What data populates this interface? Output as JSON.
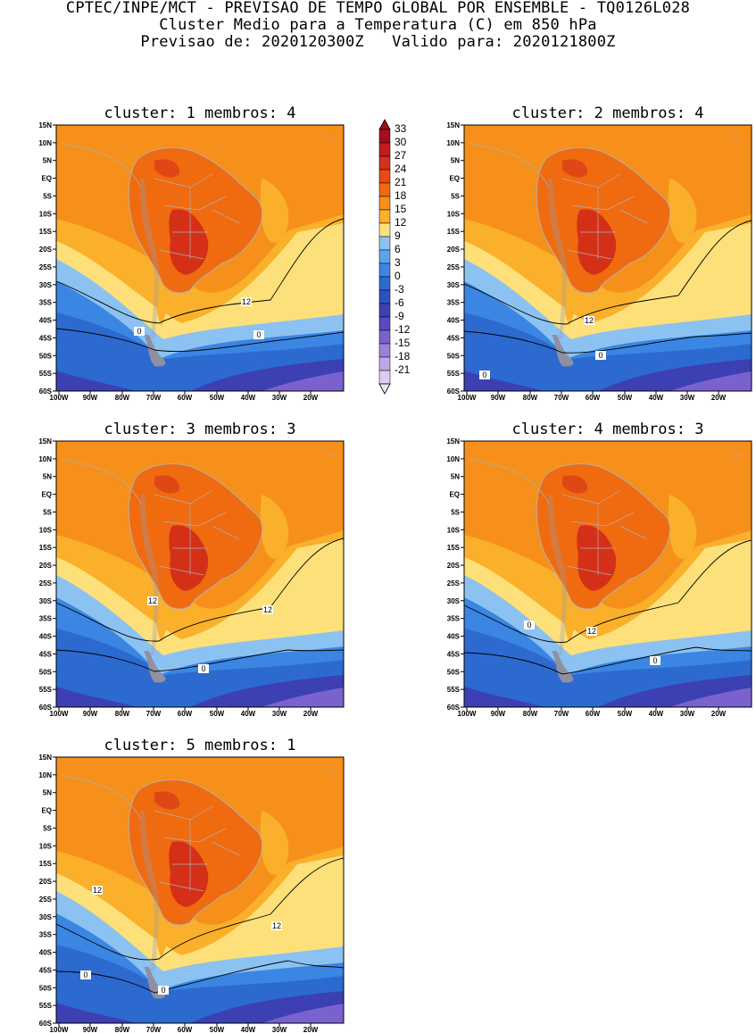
{
  "header": {
    "line1": "CPTEC/INPE/MCT - PREVISAO DE TEMPO GLOBAL POR ENSEMBLE - TQ0126L028",
    "line2": "Cluster Medio para a Temperatura (C) em 850 hPa",
    "line3": "Previsao de: 2020120300Z   Valido para: 2020121800Z"
  },
  "axes": {
    "lat_ticks": [
      "15N",
      "10N",
      "5N",
      "EQ",
      "5S",
      "10S",
      "15S",
      "20S",
      "25S",
      "30S",
      "35S",
      "40S",
      "45S",
      "50S",
      "55S",
      "60S"
    ],
    "lon_ticks": [
      "100W",
      "90W",
      "80W",
      "70W",
      "60W",
      "50W",
      "40W",
      "30W",
      "20W"
    ]
  },
  "panels": [
    {
      "title": "cluster: 1   membros: 4",
      "contour_labels": [
        "12",
        "0",
        "0"
      ]
    },
    {
      "title": "cluster: 2   membros: 4",
      "contour_labels": [
        "12",
        "0",
        "0"
      ]
    },
    {
      "title": "cluster: 3   membros: 3",
      "contour_labels": [
        "12",
        "12",
        "0"
      ]
    },
    {
      "title": "cluster: 4   membros: 3",
      "contour_labels": [
        "0",
        "12",
        "0"
      ]
    },
    {
      "title": "cluster: 5   membros: 1",
      "contour_labels": [
        "12",
        "12",
        "0",
        "0"
      ]
    }
  ],
  "colorbar": {
    "labels": [
      "33",
      "30",
      "27",
      "24",
      "21",
      "18",
      "15",
      "12",
      "9",
      "6",
      "3",
      "0",
      "-3",
      "-6",
      "-9",
      "-12",
      "-15",
      "-18",
      "-21"
    ],
    "colors": [
      "#a50d1a",
      "#c21a1e",
      "#d43018",
      "#e84a12",
      "#f06a10",
      "#f6901a",
      "#fab02a",
      "#fde07a",
      "#8cc2f2",
      "#5ea4ec",
      "#3a86e2",
      "#2c6ad0",
      "#2a52c0",
      "#3c40b2",
      "#5a48c0",
      "#7a62ce",
      "#9a82da",
      "#bca8e6",
      "#dcccf2"
    ]
  },
  "colors": {
    "warm_land": "#f06a10",
    "hot_land": "#d43018",
    "orange": "#f6901a",
    "light_orange": "#fab02a",
    "yellow": "#fde07a",
    "light_blue": "#8cc2f2",
    "blue": "#3a86e2",
    "dark_blue": "#2c6ad0",
    "indigo": "#3c40b2",
    "violet": "#7a62ce",
    "border": "#b0b0b0",
    "andes": "#9a9aa8"
  }
}
